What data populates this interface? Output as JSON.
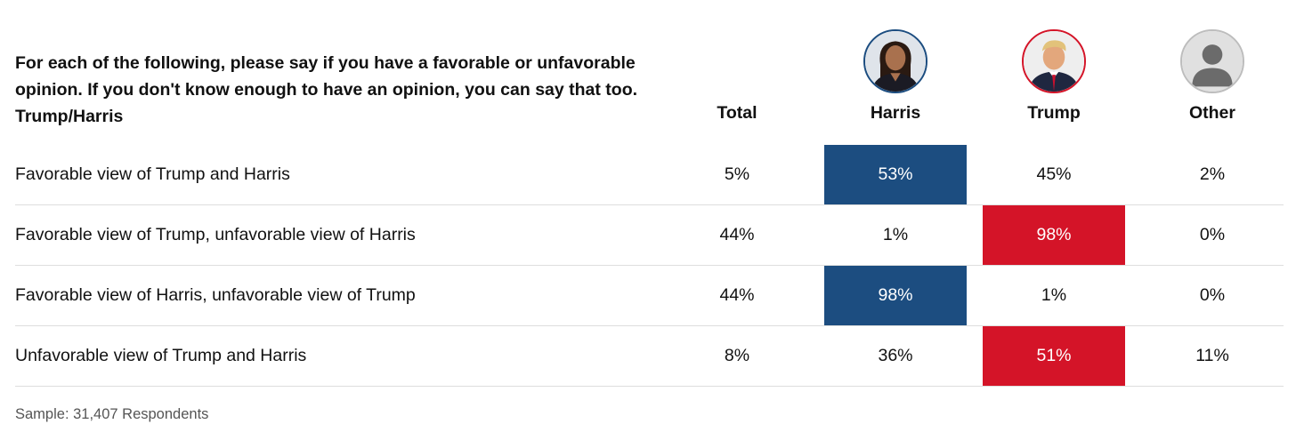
{
  "question": "For each of the following, please say if you have a favorable or unfavorable opinion. If you don't know enough to have an opinion, you can say that too. Trump/Harris",
  "colors": {
    "harris_highlight": "#1c4d80",
    "trump_highlight": "#d41428",
    "divider": "#dedede"
  },
  "chart_data": {
    "type": "table",
    "columns": [
      "Total",
      "Harris",
      "Trump",
      "Other"
    ],
    "column_avatars": [
      "harris-photo",
      "trump-photo",
      "generic-person-icon"
    ],
    "rows": [
      {
        "label": "Favorable view of Trump and Harris",
        "values": [
          "5%",
          "53%",
          "45%",
          "2%"
        ],
        "highlight": "Harris"
      },
      {
        "label": "Favorable view of Trump, unfavorable view of Harris",
        "values": [
          "44%",
          "1%",
          "98%",
          "0%"
        ],
        "highlight": "Trump"
      },
      {
        "label": "Favorable view of Harris, unfavorable view of Trump",
        "values": [
          "44%",
          "98%",
          "1%",
          "0%"
        ],
        "highlight": "Harris"
      },
      {
        "label": "Unfavorable view of Trump and Harris",
        "values": [
          "8%",
          "36%",
          "51%",
          "11%"
        ],
        "highlight": "Trump"
      }
    ]
  },
  "footer": "Sample: 31,407 Respondents"
}
